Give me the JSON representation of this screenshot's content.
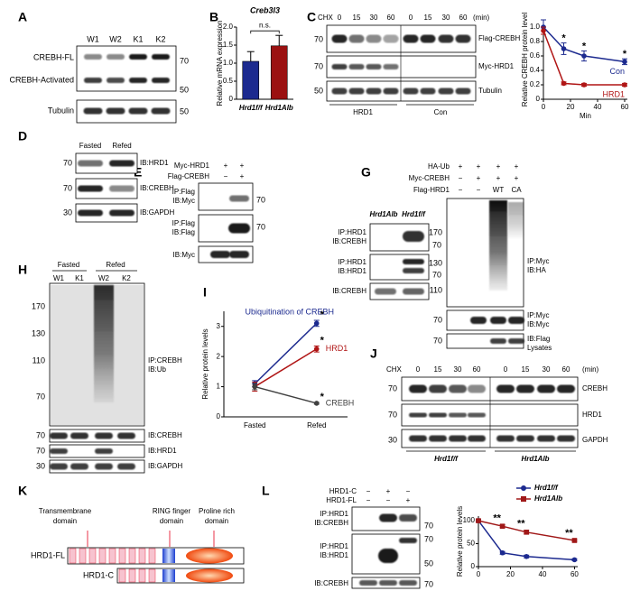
{
  "panels": {
    "A": {
      "label": "A",
      "lanes": [
        "W1",
        "W2",
        "K1",
        "K2"
      ],
      "rows": [
        "CREBH-FL",
        "CREBH-Activated",
        "Tubulin"
      ],
      "markers": [
        "70",
        "50",
        "50"
      ]
    },
    "B": {
      "label": "B"
    },
    "C": {
      "label": "C",
      "treatment": "CHX",
      "times": [
        "0",
        "15",
        "30",
        "60",
        "0",
        "15",
        "30",
        "60"
      ],
      "unit": "(min)",
      "rows": [
        "Flag-CREBH",
        "Myc-HRD1",
        "Tubulin"
      ],
      "markers": [
        "70",
        "70",
        "50"
      ],
      "groups": [
        "HRD1",
        "Con"
      ]
    },
    "D": {
      "label": "D",
      "lanes": [
        "Fasted",
        "Refed"
      ],
      "rows": [
        "IB:HRD1",
        "IB:CREBH",
        "IB:GAPDH"
      ],
      "markers": [
        "70",
        "70",
        "30"
      ]
    },
    "E": {
      "label": "E",
      "conditions": [
        {
          "name": "Myc-HRD1",
          "lanes": [
            "+",
            "+"
          ]
        },
        {
          "name": "Flag-CREBH",
          "lanes": [
            "−",
            "+"
          ]
        }
      ],
      "rows": [
        [
          "IP:Flag",
          "IB:Myc"
        ],
        [
          "IP:Flag",
          "IB:Flag"
        ],
        [
          "IB:Myc"
        ]
      ],
      "markers": [
        "70",
        "70"
      ]
    },
    "F": {
      "label": "F",
      "lanes": [
        "Hrd1Alb",
        "Hrd1f/f"
      ],
      "rows": [
        [
          "IP:HRD1",
          "IB:CREBH"
        ],
        [
          "IP:HRD1",
          "IB:HRD1"
        ],
        [
          "IB:CREBH"
        ]
      ],
      "markers": [
        "70",
        "70"
      ]
    },
    "G": {
      "label": "G",
      "conditions": [
        {
          "name": "HA-Ub",
          "lanes": [
            "+",
            "+",
            "+",
            "+"
          ]
        },
        {
          "name": "Myc-CREBH",
          "lanes": [
            "−",
            "+",
            "+",
            "+"
          ]
        },
        {
          "name": "Flag-HRD1",
          "lanes": [
            "−",
            "−",
            "WT",
            "CA"
          ]
        }
      ],
      "markers": [
        "170",
        "130",
        "110",
        "70",
        "70"
      ],
      "rows": [
        [
          "IP:Myc",
          "IB:HA"
        ],
        [
          "IP:Myc",
          "IB:Myc"
        ],
        [
          "IB:Flag",
          "Lysates"
        ]
      ]
    },
    "H": {
      "label": "H",
      "groups": [
        "Fasted",
        "Refed"
      ],
      "lanes": [
        "W1",
        "K1",
        "W2",
        "K2"
      ],
      "markers": [
        "170",
        "130",
        "110",
        "70",
        "70",
        "70",
        "30"
      ],
      "rows": [
        [
          "IP:CREBH",
          "IB:Ub"
        ],
        [
          "IB:CREBH"
        ],
        [
          "IB:HRD1"
        ],
        [
          "IB:GAPDH"
        ]
      ]
    },
    "I": {
      "label": "I"
    },
    "J": {
      "label": "J",
      "treatment": "CHX",
      "times": [
        "0",
        "15",
        "30",
        "60",
        "0",
        "15",
        "30",
        "60"
      ],
      "unit": "(min)",
      "rows": [
        "CREBH",
        "HRD1",
        "GAPDH"
      ],
      "markers": [
        "70",
        "70",
        "30"
      ],
      "groups": [
        "Hrd1f/f",
        "Hrd1Alb"
      ]
    },
    "K": {
      "label": "K",
      "domains": [
        [
          "Transmembrane",
          "domain"
        ],
        [
          "RING finger",
          "domain"
        ],
        [
          "Proline rich",
          "domain"
        ]
      ],
      "constructs": [
        "HRD1-FL",
        "HRD1-C"
      ]
    },
    "L": {
      "label": "L",
      "conditions": [
        {
          "name": "HRD1-C",
          "lanes": [
            "−",
            "+",
            "−"
          ]
        },
        {
          "name": "HRD1-FL",
          "lanes": [
            "−",
            "−",
            "+"
          ]
        }
      ],
      "rows": [
        [
          "IP:HRD1",
          "IB:CREBH"
        ],
        [
          "IP:HRD1",
          "IB:HRD1"
        ],
        [
          "IB:CREBH"
        ]
      ],
      "markers": [
        "70",
        "70",
        "50",
        "70"
      ]
    }
  },
  "chart_data": [
    {
      "type": "bar",
      "title": "Creb3l3",
      "y_label": "Relative mRNA expression",
      "categories": [
        "Hrd1f/f",
        "Hrd1Alb"
      ],
      "values": [
        1.05,
        1.48
      ],
      "errors": [
        0.27,
        0.29
      ],
      "colors": [
        "#1c2a8f",
        "#9b1111"
      ],
      "ylim": [
        0,
        2
      ],
      "yticks": [
        0,
        0.5,
        {
          "value": 1,
          "label": "1.0"
        },
        1.5,
        {
          "value": 2,
          "label": "2.0"
        }
      ],
      "annotations": [
        "n.s."
      ]
    },
    {
      "type": "line",
      "y_label": "Relative CREBH protein level",
      "x_label": "Min",
      "x": [
        0,
        15,
        30,
        60
      ],
      "xlim": [
        0,
        62
      ],
      "xticks": [
        0,
        20,
        40,
        60
      ],
      "ylim": [
        0,
        1.1
      ],
      "yticks": [
        0,
        0.2,
        0.4,
        0.6,
        0.8,
        {
          "value": 1,
          "label": "1.0"
        }
      ],
      "series": [
        {
          "name": "Con",
          "color": "#1c2a8f",
          "values": [
            1.0,
            0.7,
            0.6,
            0.52
          ],
          "errors": [
            0.1,
            0.08,
            0.07,
            0.04
          ]
        },
        {
          "name": "HRD1",
          "color": "#b01515",
          "values": [
            0.95,
            0.22,
            0.2,
            0.2
          ],
          "errors": [
            0.05,
            0.02,
            0.02,
            0.02
          ]
        }
      ],
      "annotations": [
        "*",
        "*",
        "*"
      ]
    },
    {
      "type": "line",
      "y_label": "Relative protein levels",
      "categories": [
        "Fasted",
        "Refed"
      ],
      "ylim": [
        0,
        3.5
      ],
      "yticks": [
        0,
        1,
        2,
        3
      ],
      "series": [
        {
          "name": "Ubiquitination of CREBH",
          "color": "#1c2a8f",
          "values": [
            1.1,
            3.1
          ],
          "errors": [
            0.1,
            0.1
          ]
        },
        {
          "name": "HRD1",
          "color": "#b01515",
          "values": [
            1.0,
            2.25
          ],
          "errors": [
            0.15,
            0.1
          ]
        },
        {
          "name": "CREBH",
          "color": "#404040",
          "values": [
            1.0,
            0.45
          ],
          "errors": [
            0.1,
            0.03
          ]
        }
      ],
      "annotations": [
        "*",
        "*",
        "*"
      ]
    },
    {
      "type": "line",
      "y_label": "Relative protein levels",
      "x": [
        0,
        15,
        30,
        60
      ],
      "xlim": [
        0,
        62
      ],
      "xticks": [
        0,
        20,
        40,
        60
      ],
      "ylim": [
        0,
        110
      ],
      "yticks": [
        0,
        50,
        100
      ],
      "legend": "top-right",
      "series": [
        {
          "name": "Hrd1f/f",
          "color": "#1c2a8f",
          "values": [
            100,
            30,
            22,
            15
          ],
          "errors": [
            3,
            3,
            3,
            2
          ]
        },
        {
          "name": "Hrd1Alb",
          "color": "#a01818",
          "marker": "square",
          "values": [
            100,
            88,
            75,
            57
          ],
          "errors": [
            2,
            3,
            4,
            2
          ]
        }
      ],
      "annotations": [
        "**",
        "**",
        "**"
      ]
    }
  ]
}
